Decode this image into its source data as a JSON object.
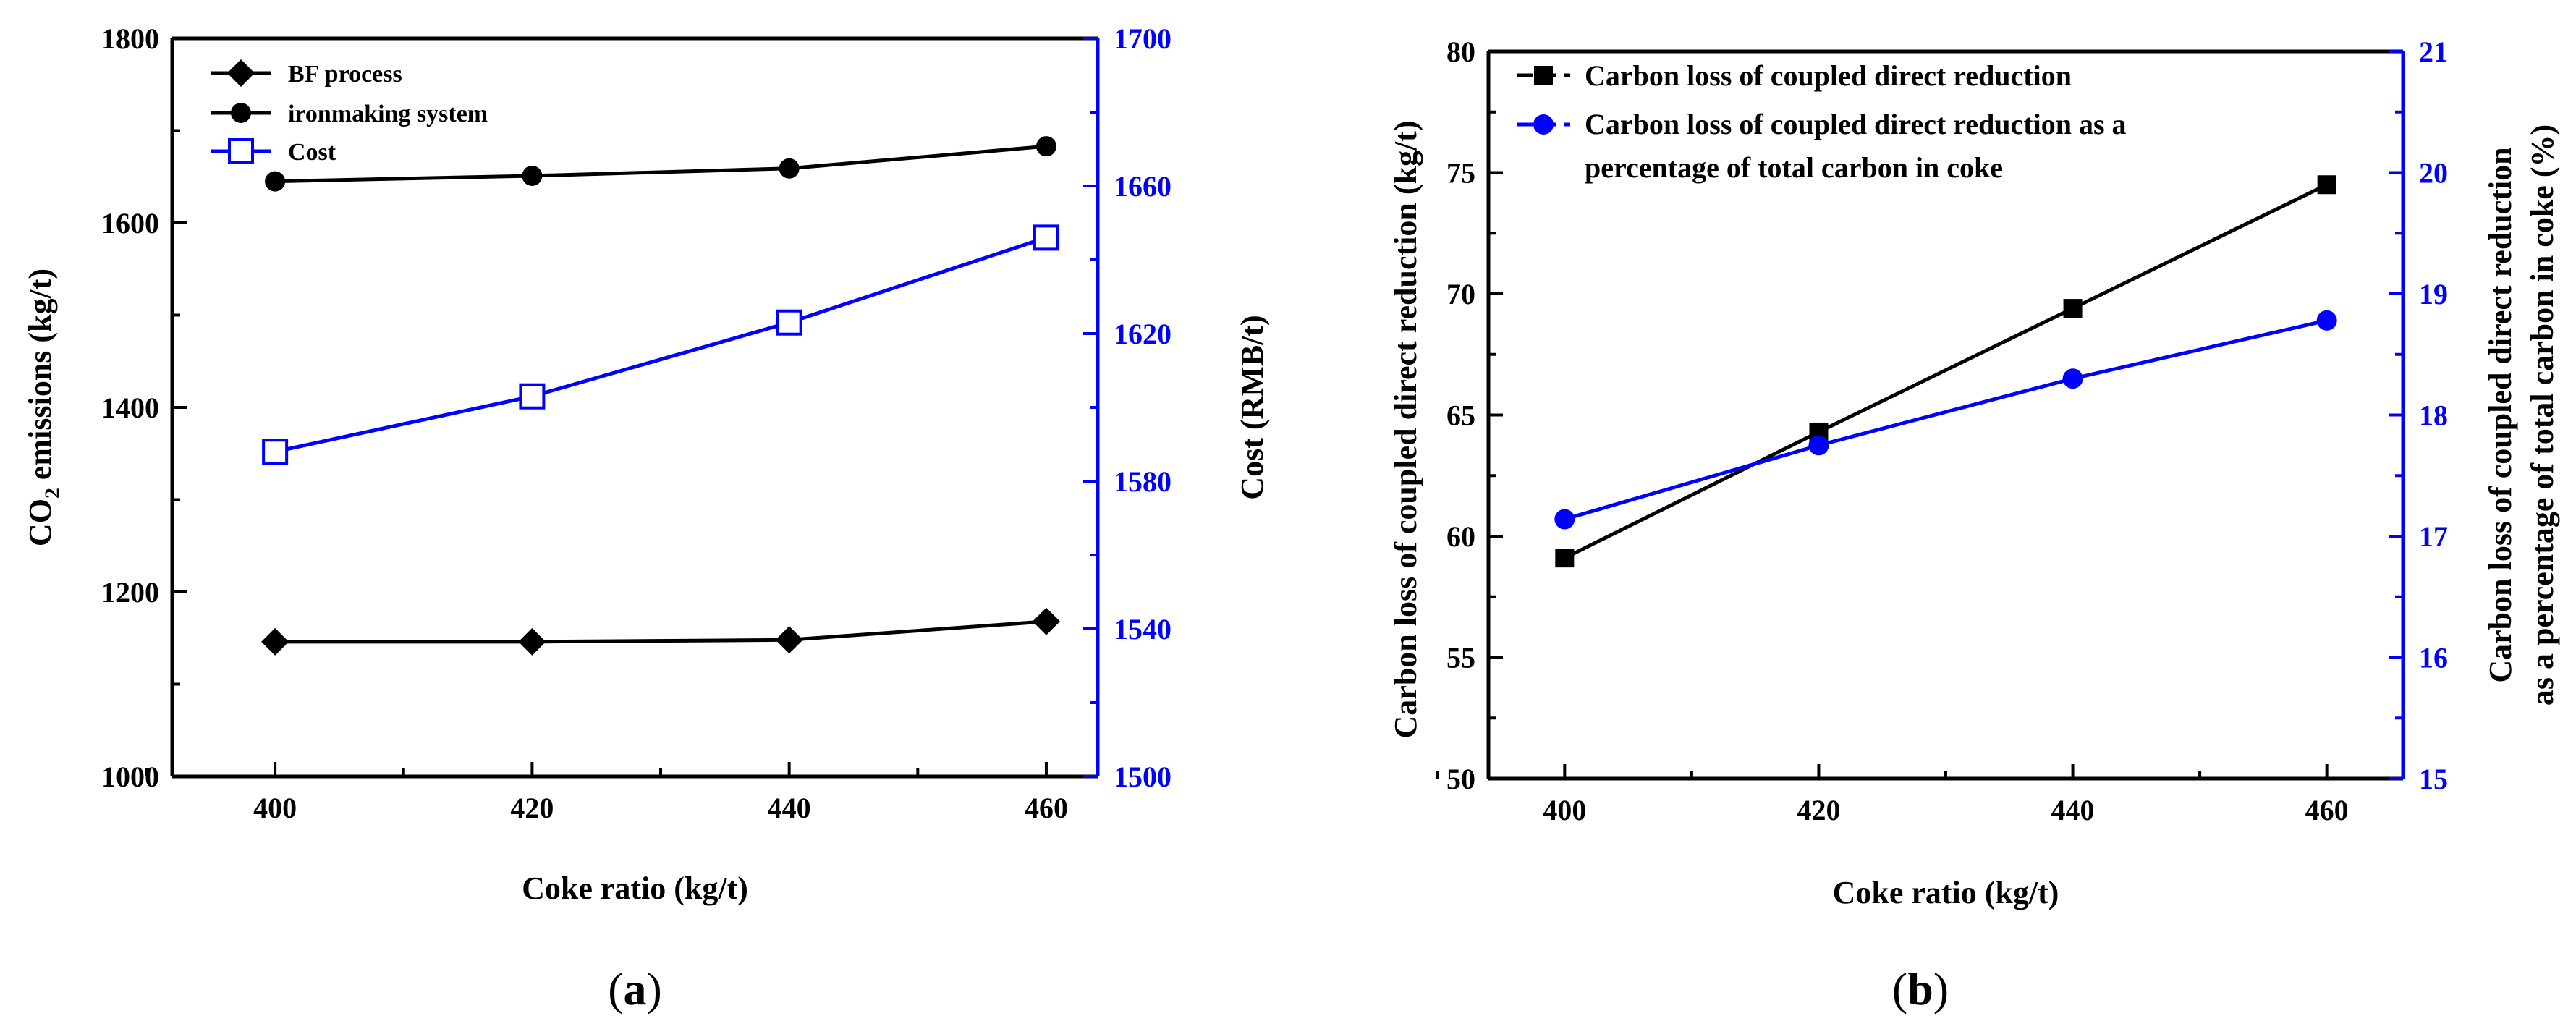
{
  "chart_data": [
    {
      "type": "line",
      "panel_label": "a",
      "xlabel": "Coke ratio (kg/t)",
      "ylabel_prefix": "CO",
      "ylabel_sub": "2",
      "ylabel_suffix": " emissions (kg/t)",
      "y2label": "Cost (RMB/t)",
      "x": [
        400,
        420,
        440,
        460
      ],
      "xlim": [
        392,
        464
      ],
      "xticks": [
        400,
        420,
        440,
        460
      ],
      "ylim": [
        1000,
        1800
      ],
      "yticks": [
        1000,
        1200,
        1400,
        1600,
        1800
      ],
      "y2lim": [
        1500,
        1700
      ],
      "y2ticks": [
        1500,
        1540,
        1580,
        1620,
        1660,
        1700
      ],
      "series": [
        {
          "name": "BF process",
          "axis": "left",
          "marker": "diamond",
          "color": "#000000",
          "values": [
            1146,
            1146,
            1148,
            1168
          ]
        },
        {
          "name": "ironmaking system",
          "axis": "left",
          "marker": "circle",
          "color": "#000000",
          "values": [
            1645,
            1651,
            1659,
            1683
          ]
        },
        {
          "name": "Cost",
          "axis": "right",
          "marker": "open-square",
          "color": "#0000ff",
          "values": [
            1588,
            1603,
            1623,
            1646
          ]
        }
      ],
      "legend_position": "top-left"
    },
    {
      "type": "line",
      "panel_label": "b",
      "xlabel": "Coke ratio (kg/t)",
      "ylabel": "Carbon loss of coupled direct reduction (kg/t)",
      "y2label_line1": "Carbon loss of coupled direct reduction",
      "y2label_line2": "as a percentage of total carbon in coke (%)",
      "x": [
        400,
        420,
        440,
        460
      ],
      "xlim": [
        394,
        466
      ],
      "xticks": [
        400,
        420,
        440,
        460
      ],
      "ylim": [
        50,
        80
      ],
      "yticks": [
        50,
        55,
        60,
        65,
        70,
        75,
        80
      ],
      "y2lim": [
        15,
        21
      ],
      "y2ticks": [
        15,
        16,
        17,
        18,
        19,
        20,
        21
      ],
      "series": [
        {
          "name": "Carbon loss of coupled direct reduction",
          "axis": "left",
          "marker": "square",
          "color": "#000000",
          "values": [
            59.1,
            64.3,
            69.4,
            74.5
          ]
        },
        {
          "name_line1": "Carbon loss of coupled direct reduction as a",
          "name_line2": "percentage of total carbon in coke",
          "axis": "right",
          "marker": "circle",
          "color": "#0000ff",
          "values": [
            17.14,
            17.75,
            18.3,
            18.78
          ]
        }
      ],
      "legend_position": "top-left"
    }
  ]
}
